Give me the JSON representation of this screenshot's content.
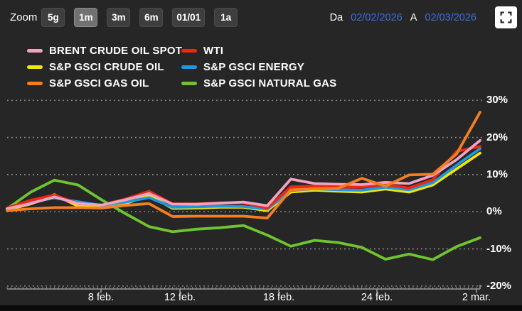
{
  "toolbar": {
    "zoom_label": "Zoom",
    "zoom_buttons": [
      {
        "label": "5g",
        "active": false
      },
      {
        "label": "1m",
        "active": true
      },
      {
        "label": "3m",
        "active": false
      },
      {
        "label": "6m",
        "active": false
      },
      {
        "label": "01/01",
        "active": false
      },
      {
        "label": "1a",
        "active": false
      }
    ],
    "date_range": {
      "from_label": "Da",
      "from_value": "02/02/2026",
      "to_label": "A",
      "to_value": "02/03/2026"
    },
    "fullscreen_icon": "fullscreen-expand"
  },
  "legend": {
    "items": [
      {
        "label": "BRENT CRUDE OIL SPOT",
        "color": "#f2a3c2"
      },
      {
        "label": "WTI",
        "color": "#ea2a10"
      },
      {
        "label": "S&P GSCI CRUDE OIL",
        "color": "#f3e50c"
      },
      {
        "label": "S&P GSCI ENERGY",
        "color": "#1e97e0"
      },
      {
        "label": "S&P GSCI GAS OIL",
        "color": "#f57e20"
      },
      {
        "label": "S&P GSCI NATURAL GAS",
        "color": "#6fc52f"
      }
    ]
  },
  "chart_data": {
    "type": "line",
    "unit": "%",
    "n_points": 21,
    "x_axis": {
      "tick_labels": [
        "8 feb.",
        "12 feb.",
        "18 feb.",
        "24 feb.",
        "2 mar."
      ],
      "tick_positions": [
        3.97,
        7.31,
        11.49,
        15.64,
        19.85
      ],
      "range_from": "02/02/2026",
      "range_to": "02/03/2026"
    },
    "y_axis": {
      "ticks": [
        30,
        20,
        10,
        0,
        -10,
        -20
      ],
      "tick_labels": [
        "30%",
        "20%",
        "10%",
        "0%",
        "-10%",
        "-20%"
      ],
      "ylim": [
        -22,
        32
      ]
    },
    "grid": "horizontal-dotted",
    "legend_position": "top-left",
    "series": [
      {
        "name": "BRENT CRUDE OIL SPOT",
        "color": "#f2a3c2",
        "values": [
          0.8,
          2.2,
          4.0,
          2.2,
          1.8,
          3.2,
          4.9,
          2.0,
          2.0,
          2.3,
          2.6,
          1.6,
          8.8,
          7.6,
          7.4,
          7.3,
          7.9,
          7.6,
          9.8,
          14.0,
          19.2
        ]
      },
      {
        "name": "WTI",
        "color": "#ea2a10",
        "values": [
          1.0,
          3.1,
          4.5,
          2.2,
          1.8,
          3.4,
          5.5,
          2.1,
          2.1,
          2.4,
          2.4,
          1.0,
          6.7,
          6.9,
          6.6,
          6.6,
          7.3,
          6.4,
          8.6,
          16.2,
          17.6
        ]
      },
      {
        "name": "S&P GSCI CRUDE OIL",
        "color": "#f3e50c",
        "values": [
          0.5,
          2.1,
          4.6,
          1.5,
          1.4,
          2.2,
          4.4,
          0.9,
          1.0,
          1.2,
          1.2,
          0.3,
          5.3,
          5.8,
          5.5,
          5.3,
          6.1,
          5.3,
          7.2,
          11.5,
          15.8
        ]
      },
      {
        "name": "S&P GSCI ENERGY",
        "color": "#1e97e0",
        "values": [
          0.6,
          2.6,
          3.7,
          2.7,
          1.7,
          2.6,
          3.8,
          1.2,
          1.3,
          1.5,
          1.4,
          0.7,
          5.7,
          6.2,
          5.9,
          5.8,
          6.6,
          5.9,
          7.8,
          12.5,
          17.0
        ]
      },
      {
        "name": "S&P GSCI GAS OIL",
        "color": "#f57e20",
        "values": [
          0.3,
          0.8,
          1.1,
          1.1,
          1.0,
          1.7,
          2.2,
          -1.3,
          -1.2,
          -1.2,
          -1.2,
          -1.7,
          5.9,
          6.2,
          6.3,
          9.0,
          6.9,
          9.9,
          10.1,
          15.5,
          26.8
        ]
      },
      {
        "name": "S&P GSCI NATURAL GAS",
        "color": "#6fc52f",
        "values": [
          0.8,
          5.3,
          8.5,
          7.2,
          3.2,
          -0.5,
          -4.0,
          -5.4,
          -4.7,
          -4.3,
          -3.7,
          -6.3,
          -9.3,
          -7.7,
          -8.3,
          -9.6,
          -12.8,
          -11.4,
          -12.9,
          -9.4,
          -7.0
        ]
      }
    ]
  },
  "colors": {
    "background": "#262626",
    "text": "#ffffff",
    "date_link": "#3c70d6",
    "grid": "#8a8a8a",
    "axis": "#9b9b9b",
    "button_bg": "#3e3e3e",
    "button_active_bg": "#717171",
    "bottom_strip": "#0b0b0b"
  }
}
